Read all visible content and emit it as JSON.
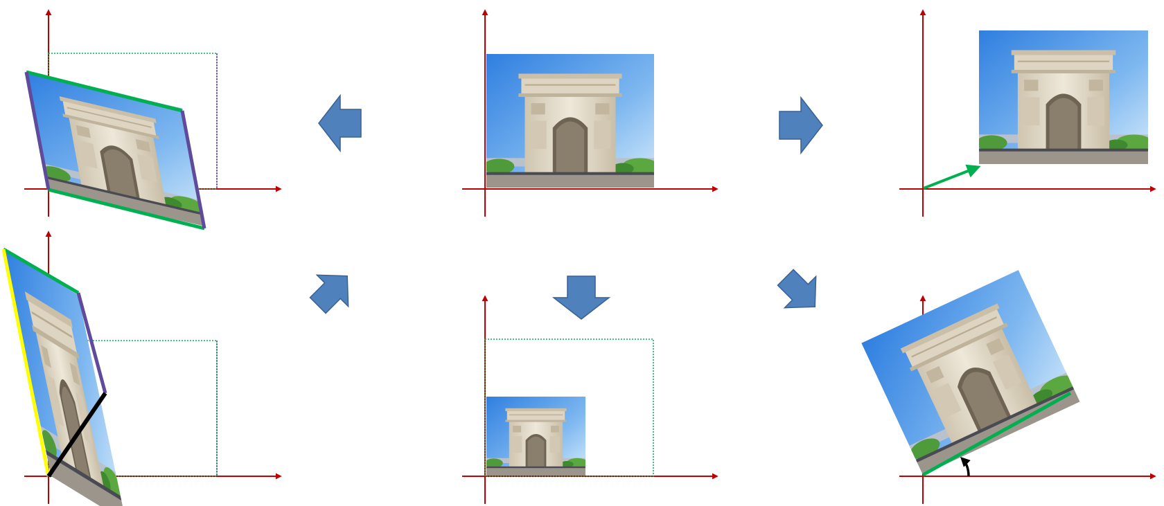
{
  "colors": {
    "axis": "#c00000",
    "arrow_fill": "#4f81bd",
    "arrow_stroke": "#3a6190",
    "green": "#00b050",
    "purple": "#604a9b",
    "yellow": "#ffff00",
    "black": "#000000",
    "dotted_green": "#00b050",
    "dotted_purple": "#7030a0",
    "sky_top": "#2f7fe0",
    "sky_bottom": "#cfe6fb",
    "stone": "#e4dccb"
  },
  "panels": {
    "original": {
      "transform": "original",
      "picture": "arc-de-triomphe-photo"
    },
    "translate": {
      "transform": "translation",
      "picture": "arc-de-triomphe-photo",
      "indicator": "translation-vector-arrow"
    },
    "scale": {
      "transform": "scaling",
      "picture": "arc-de-triomphe-photo",
      "indicator": "original-bounds-dotted-outline"
    },
    "rotate": {
      "transform": "rotation",
      "picture": "arc-de-triomphe-photo",
      "indicator": "rotation-angle-arrow"
    },
    "shear_horizontal": {
      "transform": "shear",
      "picture": "arc-de-triomphe-photo",
      "indicator": "original-bounds-dotted-outline"
    },
    "shear_vertical": {
      "transform": "shear",
      "picture": "arc-de-triomphe-photo",
      "indicator": "original-bounds-dotted-outline"
    }
  },
  "flow_arrows": [
    {
      "name": "flow-arrow-left",
      "direction": "left"
    },
    {
      "name": "flow-arrow-right",
      "direction": "right"
    },
    {
      "name": "flow-arrow-down-left",
      "direction": "down-left"
    },
    {
      "name": "flow-arrow-down",
      "direction": "down"
    },
    {
      "name": "flow-arrow-down-right",
      "direction": "down-right"
    }
  ]
}
